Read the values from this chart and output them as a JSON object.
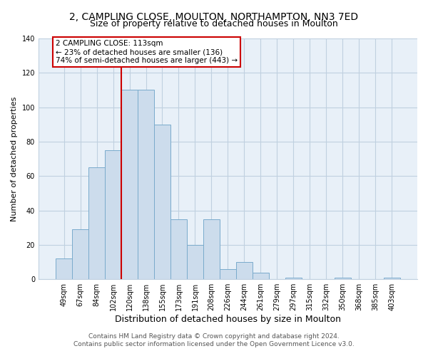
{
  "title1": "2, CAMPLING CLOSE, MOULTON, NORTHAMPTON, NN3 7ED",
  "title2": "Size of property relative to detached houses in Moulton",
  "xlabel": "Distribution of detached houses by size in Moulton",
  "ylabel": "Number of detached properties",
  "bar_labels": [
    "49sqm",
    "67sqm",
    "84sqm",
    "102sqm",
    "120sqm",
    "138sqm",
    "155sqm",
    "173sqm",
    "191sqm",
    "208sqm",
    "226sqm",
    "244sqm",
    "261sqm",
    "279sqm",
    "297sqm",
    "315sqm",
    "332sqm",
    "350sqm",
    "368sqm",
    "385sqm",
    "403sqm"
  ],
  "bar_values": [
    12,
    29,
    65,
    75,
    110,
    110,
    90,
    35,
    20,
    35,
    6,
    10,
    4,
    0,
    1,
    0,
    0,
    1,
    0,
    0,
    1
  ],
  "bar_color": "#ccdcec",
  "bar_edge_color": "#7aabcc",
  "vline_color": "#cc0000",
  "annotation_text": "2 CAMPLING CLOSE: 113sqm\n← 23% of detached houses are smaller (136)\n74% of semi-detached houses are larger (443) →",
  "annotation_box_color": "white",
  "annotation_box_edge_color": "#cc0000",
  "ylim": [
    0,
    140
  ],
  "yticks": [
    0,
    20,
    40,
    60,
    80,
    100,
    120,
    140
  ],
  "footer1": "Contains HM Land Registry data © Crown copyright and database right 2024.",
  "footer2": "Contains public sector information licensed under the Open Government Licence v3.0.",
  "background_color": "#ffffff",
  "plot_bg_color": "#e8f0f8",
  "grid_color": "#c0d0e0",
  "title1_fontsize": 10,
  "title2_fontsize": 9,
  "xlabel_fontsize": 9,
  "ylabel_fontsize": 8,
  "tick_fontsize": 7,
  "annotation_fontsize": 7.5,
  "footer_fontsize": 6.5
}
